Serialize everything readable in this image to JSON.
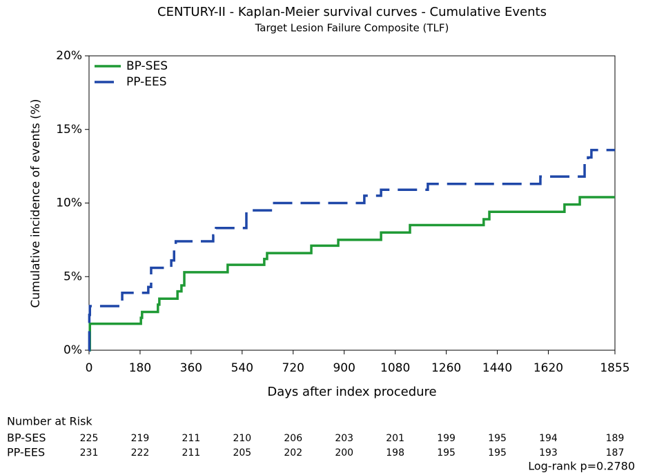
{
  "chart_data": {
    "type": "step-line",
    "title": "CENTURY-II - Kaplan-Meier survival curves - Cumulative Events",
    "subtitle": "Target Lesion Failure Composite (TLF)",
    "x_label": "Days after index procedure",
    "y_label": "Cumulative incidence of events (%)",
    "xlim": [
      0,
      1855
    ],
    "ylim": [
      0,
      20
    ],
    "xticks": [
      0,
      180,
      360,
      540,
      720,
      900,
      1080,
      1260,
      1440,
      1620,
      1855
    ],
    "yticks": [
      {
        "value": 0,
        "label": "0%"
      },
      {
        "value": 5,
        "label": "5%"
      },
      {
        "value": 10,
        "label": "10%"
      },
      {
        "value": 15,
        "label": "15%"
      },
      {
        "value": 20,
        "label": "20%"
      }
    ],
    "legend": "top-left",
    "series": [
      {
        "name": "BP-SES",
        "color": "#1f9a35",
        "line_style": "solid",
        "x": [
          0,
          3,
          3,
          183,
          183,
          187,
          187,
          243,
          243,
          248,
          248,
          312,
          312,
          326,
          326,
          336,
          336,
          489,
          489,
          618,
          618,
          628,
          628,
          784,
          784,
          879,
          879,
          1030,
          1030,
          1132,
          1132,
          1392,
          1392,
          1412,
          1412,
          1677,
          1677,
          1731,
          1731,
          1855
        ],
        "values": [
          0,
          0,
          1.8,
          1.8,
          2.2,
          2.2,
          2.6,
          2.6,
          3.1,
          3.1,
          3.5,
          3.5,
          4.0,
          4.0,
          4.4,
          4.4,
          5.3,
          5.3,
          5.8,
          5.8,
          6.2,
          6.2,
          6.6,
          6.6,
          7.1,
          7.1,
          7.5,
          7.5,
          8.0,
          8.0,
          8.5,
          8.5,
          8.9,
          8.9,
          9.4,
          9.4,
          9.9,
          9.9,
          10.4,
          10.4
        ]
      },
      {
        "name": "PP-EES",
        "color": "#1f47a8",
        "line_style": "dashed",
        "x": [
          0,
          1,
          1,
          3,
          3,
          117,
          117,
          209,
          209,
          219,
          219,
          290,
          290,
          300,
          300,
          306,
          306,
          438,
          438,
          448,
          448,
          555,
          555,
          648,
          648,
          971,
          971,
          1030,
          1030,
          1195,
          1195,
          1592,
          1592,
          1748,
          1748,
          1760,
          1760,
          1772,
          1772,
          1855
        ],
        "values": [
          0,
          0,
          2.4,
          2.4,
          3.0,
          3.0,
          3.9,
          3.9,
          4.3,
          4.3,
          5.6,
          5.6,
          6.1,
          6.1,
          6.9,
          6.9,
          7.4,
          7.4,
          7.8,
          7.8,
          8.3,
          8.3,
          9.5,
          9.5,
          10.0,
          10.0,
          10.5,
          10.5,
          10.9,
          10.9,
          11.3,
          11.3,
          11.8,
          11.8,
          12.7,
          12.7,
          13.1,
          13.1,
          13.6,
          13.6
        ]
      }
    ],
    "at_risk": {
      "title": "Number at Risk",
      "rows": [
        {
          "label": "BP-SES",
          "values": [
            225,
            219,
            211,
            210,
            206,
            203,
            201,
            199,
            195,
            194,
            189
          ]
        },
        {
          "label": "PP-EES",
          "values": [
            231,
            222,
            211,
            205,
            202,
            200,
            198,
            195,
            195,
            193,
            187
          ]
        }
      ]
    },
    "annotation": "Log-rank p=0.2780"
  }
}
